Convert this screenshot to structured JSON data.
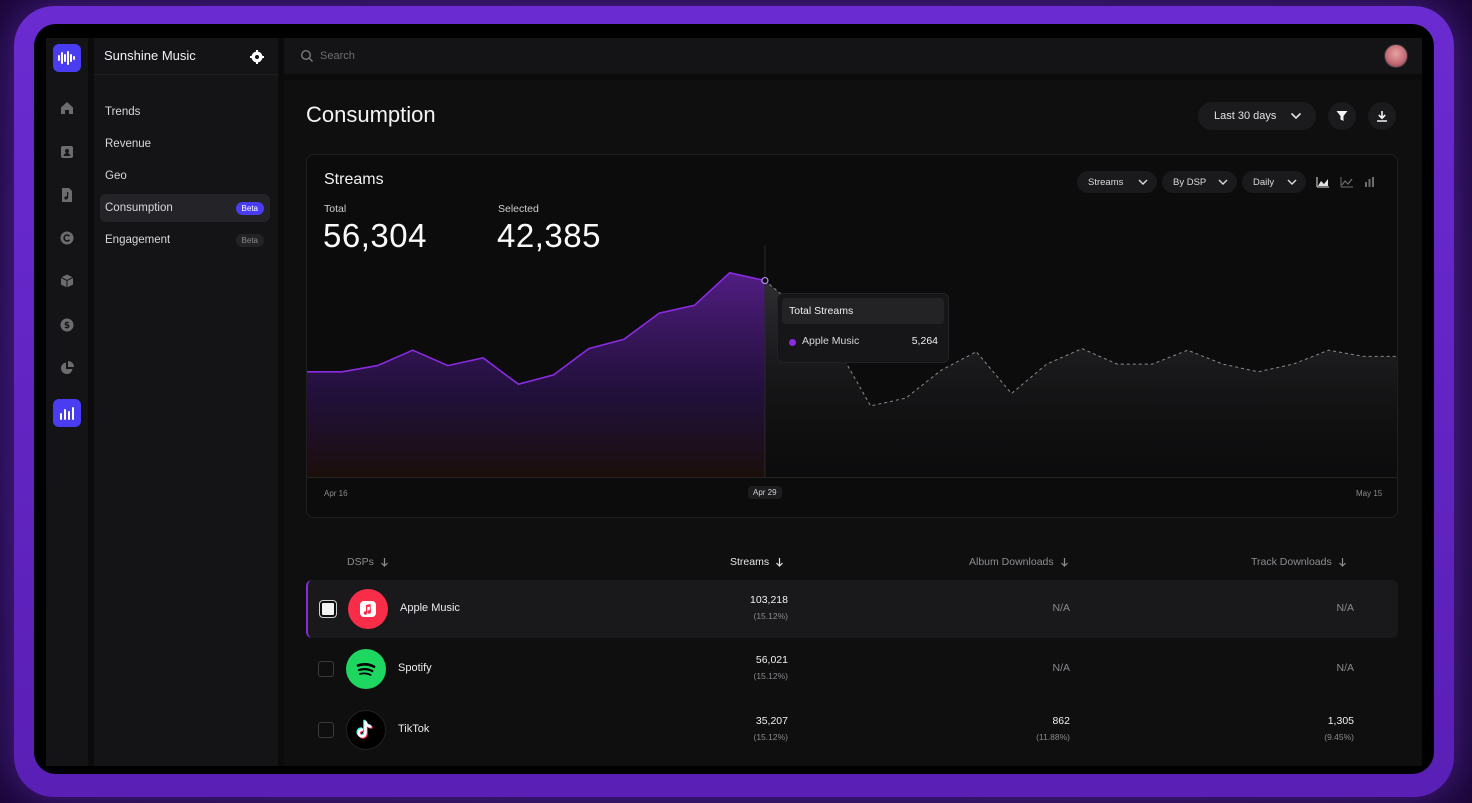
{
  "app": {
    "name": "Sunshine Music",
    "search_placeholder": "Search"
  },
  "sidebar": {
    "items": [
      {
        "label": "Trends",
        "badge": ""
      },
      {
        "label": "Revenue",
        "badge": ""
      },
      {
        "label": "Geo",
        "badge": ""
      },
      {
        "label": "Consumption",
        "badge": "Beta",
        "active": true
      },
      {
        "label": "Engagement",
        "badge": "Beta"
      }
    ]
  },
  "rail_icons": [
    "home-icon",
    "contacts-icon",
    "music-file-icon",
    "copyright-icon",
    "box-icon",
    "dollar-icon",
    "pie-chart-icon",
    "bar-chart-icon"
  ],
  "page": {
    "title": "Consumption",
    "range_label": "Last 30 days"
  },
  "chart": {
    "title": "Streams",
    "total_label": "Total",
    "total_value": "56,304",
    "selected_label": "Selected",
    "selected_value": "42,385",
    "filters": {
      "metric": "Streams",
      "group": "By DSP",
      "interval": "Daily"
    },
    "tooltip": {
      "title": "Total Streams",
      "series": "Apple Music",
      "value": "5,264"
    },
    "x_ticks": {
      "start": "Apr 16",
      "mid": "Apr 29",
      "end": "May 15"
    },
    "accent": "#8a2be2"
  },
  "chart_data": {
    "type": "area",
    "x": [
      "Apr 16",
      "Apr 17",
      "Apr 18",
      "Apr 19",
      "Apr 20",
      "Apr 21",
      "Apr 22",
      "Apr 23",
      "Apr 24",
      "Apr 25",
      "Apr 26",
      "Apr 27",
      "Apr 28",
      "Apr 29",
      "Apr 30",
      "May 1",
      "May 2",
      "May 3",
      "May 4",
      "May 5",
      "May 6",
      "May 7",
      "May 8",
      "May 9",
      "May 10",
      "May 11",
      "May 12",
      "May 13",
      "May 14",
      "May 15",
      "May 16",
      "May 17"
    ],
    "values": [
      3400,
      3400,
      3600,
      4100,
      3600,
      3850,
      3000,
      3300,
      4150,
      4450,
      5300,
      5550,
      6600,
      6350,
      5400,
      4300,
      2300,
      2550,
      3450,
      4050,
      2700,
      3650,
      4150,
      3650,
      3650,
      4100,
      3650,
      3400,
      3650,
      4100,
      3900,
      3900
    ],
    "selected_until_index": 13,
    "title": "Streams",
    "ylim": [
      0,
      7500
    ]
  },
  "table": {
    "headers": {
      "dsp": "DSPs",
      "streams": "Streams",
      "album": "Album Downloads",
      "track": "Track Downloads"
    },
    "rows": [
      {
        "name": "Apple Music",
        "icon": "apple-music-icon",
        "color": "#fa2d48",
        "streams": "103,218",
        "streams_pct": "(15.12%)",
        "album": "N/A",
        "album_pct": "",
        "track": "N/A",
        "track_pct": "",
        "selected": true
      },
      {
        "name": "Spotify",
        "icon": "spotify-icon",
        "color": "#1ed760",
        "streams": "56,021",
        "streams_pct": "(15.12%)",
        "album": "N/A",
        "album_pct": "",
        "track": "N/A",
        "track_pct": "",
        "selected": false
      },
      {
        "name": "TikTok",
        "icon": "tiktok-icon",
        "color": "#000000",
        "streams": "35,207",
        "streams_pct": "(15.12%)",
        "album": "862",
        "album_pct": "(11.88%)",
        "track": "1,305",
        "track_pct": "(9.45%)",
        "selected": false
      }
    ]
  }
}
